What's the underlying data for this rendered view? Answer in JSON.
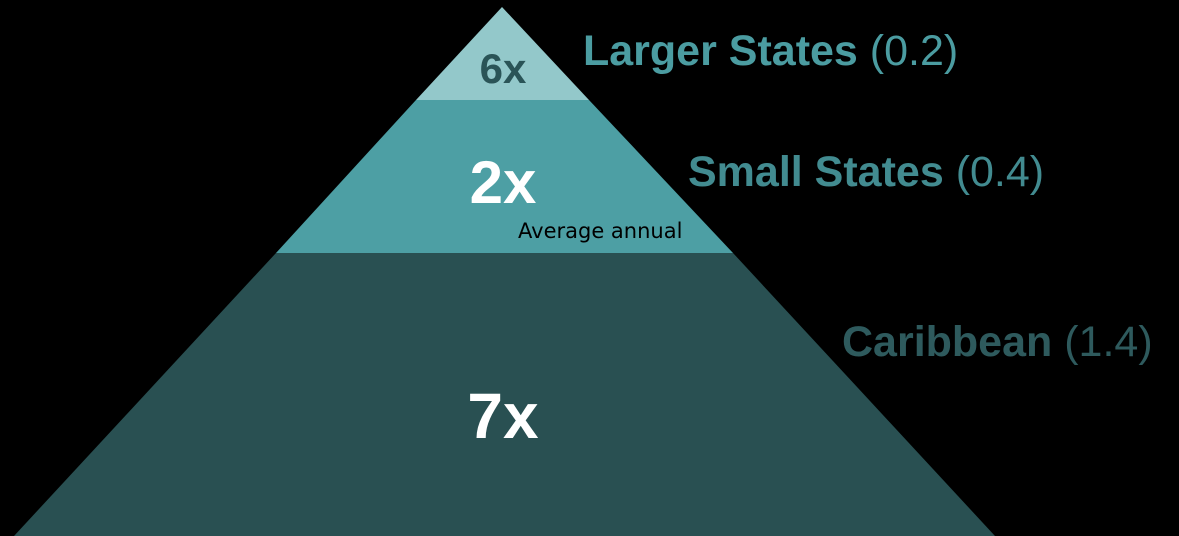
{
  "tiers": [
    {
      "multiplier": "6x",
      "name": "Larger States",
      "value": "(0.2)",
      "fill_color": "#93c8ca",
      "multiplier_color": "#2a5457",
      "label_color": "#4b9ca1"
    },
    {
      "multiplier": "2x",
      "name": "Small States",
      "value": "(0.4)",
      "fill_color": "#4d9fa4",
      "multiplier_color": "#ffffff",
      "label_color": "#428b90"
    },
    {
      "multiplier": "7x",
      "name": "Caribbean",
      "value": "(1.4)",
      "fill_color": "#295052",
      "multiplier_color": "#ffffff",
      "label_color": "#2e5a5d"
    }
  ],
  "caption": "Average annual"
}
